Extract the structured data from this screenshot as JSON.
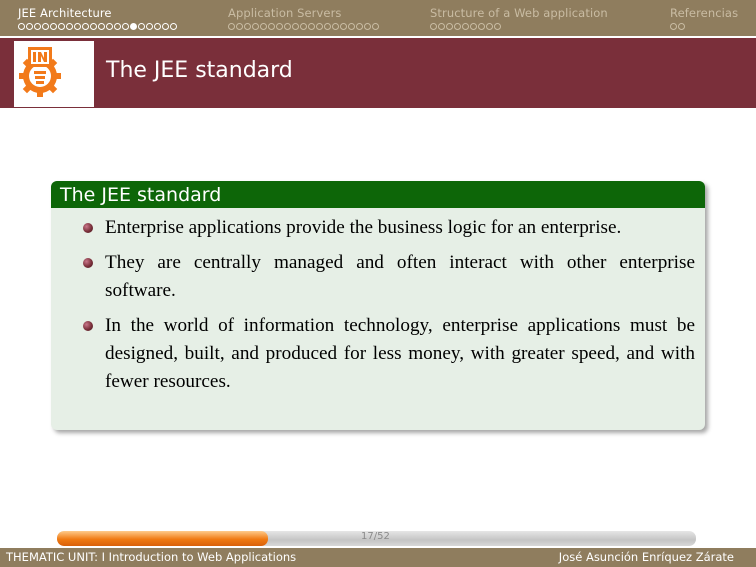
{
  "nav": {
    "sections": [
      {
        "title": "JEE Architecture",
        "dots": "ooooooooooooo●●ooooo",
        "active": true,
        "filled_index": 14
      },
      {
        "title": "Application Servers",
        "dots": "ooooooooooooooooooo",
        "active": false
      },
      {
        "title": "Structure of a Web application",
        "dots": "ooooooooo",
        "active": false
      },
      {
        "title": "Referencias",
        "dots": "oo",
        "active": false
      }
    ]
  },
  "frame": {
    "title": "The JEE standard",
    "logo_icon": "institution-emblem-icon"
  },
  "block": {
    "title": "The JEE standard",
    "items": [
      "Enterprise applications provide the business logic for an enterprise.",
      "They are centrally managed and often interact with other enterprise software.",
      "In the world of information technology, enterprise applications must be designed, built, and produced for less money, with greater speed, and with fewer resources."
    ]
  },
  "footer": {
    "left": "THEMATIC UNIT: I Introduction to Web Applications",
    "right": "José Asunción Enríquez Zárate",
    "page": "17/52",
    "progress": 0.33
  },
  "colors": {
    "navbar": "#8f7d5e",
    "titlebar": "#7a2f3a",
    "block_header": "#0d6608",
    "block_body": "#e6efe6",
    "progress": "#f07a12"
  }
}
